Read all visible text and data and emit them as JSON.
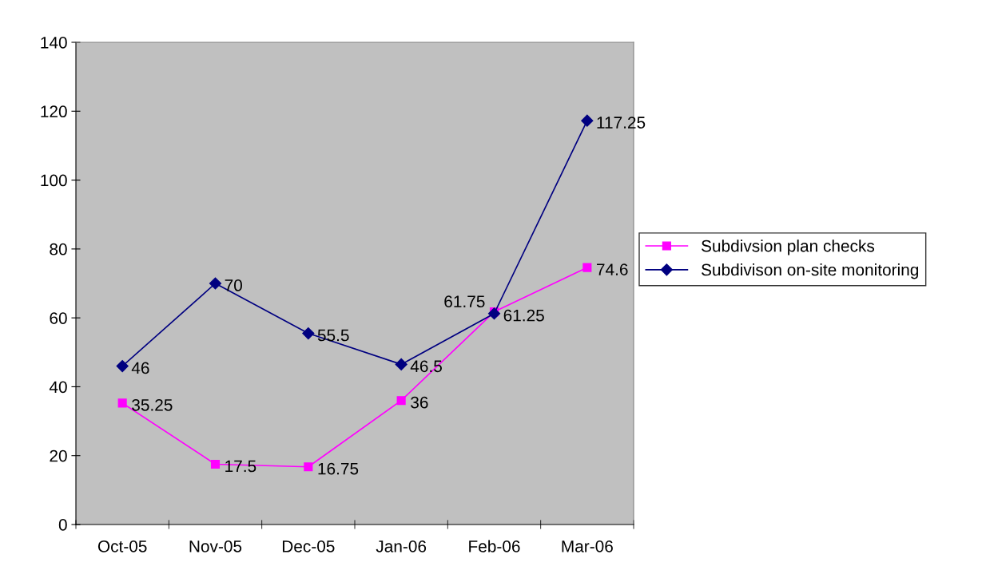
{
  "chart_data": {
    "type": "line",
    "categories": [
      "Oct-05",
      "Nov-05",
      "Dec-05",
      "Jan-06",
      "Feb-06",
      "Mar-06"
    ],
    "series": [
      {
        "name": "Subdivsion plan checks",
        "color": "#ff00ff",
        "marker": "square",
        "values": [
          35.25,
          17.5,
          16.75,
          36,
          61.75,
          74.6
        ]
      },
      {
        "name": "Subdivison on-site monitoring",
        "color": "#000080",
        "marker": "diamond",
        "values": [
          46,
          70,
          55.5,
          46.5,
          61.25,
          117.25
        ]
      }
    ],
    "ylim": [
      0,
      140
    ],
    "yticks": [
      0,
      20,
      40,
      60,
      80,
      100,
      120,
      140
    ],
    "grid": false,
    "legend": "right",
    "data_labels": true,
    "line_style": "solid"
  }
}
